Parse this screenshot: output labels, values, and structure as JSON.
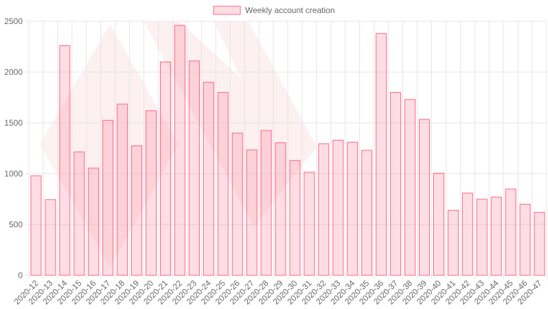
{
  "chart_data": {
    "type": "bar",
    "categories": [
      "2020-12",
      "2020-13",
      "2020-14",
      "2020-15",
      "2020-16",
      "2020-17",
      "2020-18",
      "2020-19",
      "2020-20",
      "2020-21",
      "2020-22",
      "2020-23",
      "2020-24",
      "2020-25",
      "2020-26",
      "2020-27",
      "2020-28",
      "2020-29",
      "2020-30",
      "2020-31",
      "2020-32",
      "2020-33",
      "2020-34",
      "2020-35",
      "2020-36",
      "2020-37",
      "2020-38",
      "2020-39",
      "2020-40",
      "2020-41",
      "2020-42",
      "2020-43",
      "2020-44",
      "2020-45",
      "2020-46",
      "2020-47"
    ],
    "series": [
      {
        "name": "Weekly account creation",
        "color": "#ff6384",
        "values": [
          980,
          745,
          2260,
          1215,
          1055,
          1525,
          1685,
          1275,
          1620,
          2100,
          2460,
          2110,
          1900,
          1800,
          1400,
          1235,
          1425,
          1305,
          1130,
          1015,
          1295,
          1330,
          1310,
          1230,
          2380,
          1800,
          1730,
          1535,
          1005,
          640,
          810,
          750,
          770,
          850,
          700,
          620
        ]
      }
    ],
    "ylim": [
      0,
      2500
    ],
    "yticks": [
      0,
      500,
      1000,
      1500,
      2000,
      2500
    ],
    "grid": true,
    "legend": "top"
  }
}
